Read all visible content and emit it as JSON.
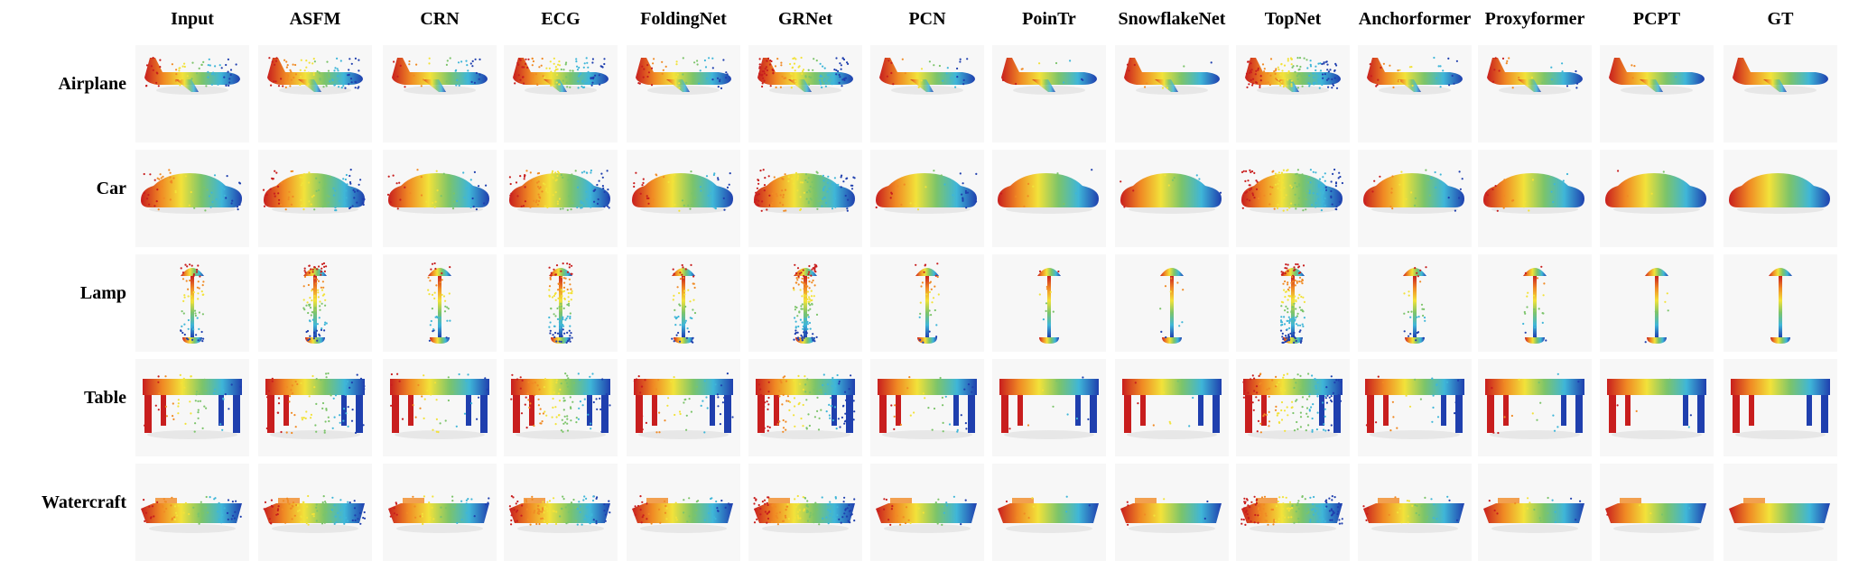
{
  "columns": [
    "Input",
    "ASFM",
    "CRN",
    "ECG",
    "FoldingNet",
    "GRNet",
    "PCN",
    "PoinTr",
    "SnowflakeNet",
    "TopNet",
    "Anchorformer",
    "Proxyformer",
    "PCPT",
    "GT"
  ],
  "rows": [
    "Airplane",
    "Car",
    "Lamp",
    "Table",
    "Watercraft"
  ],
  "colors": {
    "red": "#c81e1e",
    "orange": "#f08a24",
    "yellow": "#f2e23a",
    "green": "#7cc46a",
    "cyan": "#3fb6d8",
    "blue": "#1f3fae"
  }
}
